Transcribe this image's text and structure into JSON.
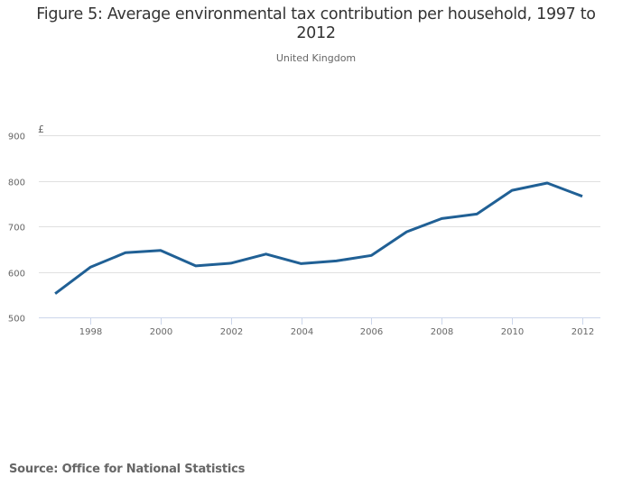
{
  "chart_data": {
    "type": "line",
    "title": "Figure 5: Average environmental tax contribution per household, 1997 to 2012",
    "subtitle": "United Kingdom",
    "xlabel": "",
    "ylabel": "£",
    "x": [
      1997,
      1998,
      1999,
      2000,
      2001,
      2002,
      2003,
      2004,
      2005,
      2006,
      2007,
      2008,
      2009,
      2010,
      2011,
      2012
    ],
    "series": [
      {
        "name": "Average environmental tax contribution per household",
        "color": "#206095",
        "values": [
          552,
          610,
          642,
          647,
          613,
          619,
          639,
          618,
          624,
          636,
          688,
          717,
          727,
          779,
          795,
          766
        ]
      }
    ],
    "xlim": [
      1996.0,
      2012.5
    ],
    "ylim": [
      500,
      900
    ],
    "yticks": [
      500,
      600,
      700,
      800,
      900
    ],
    "xticks": [
      1998,
      2000,
      2002,
      2004,
      2006,
      2008,
      2010,
      2012
    ],
    "grid": true,
    "legend": "none"
  },
  "source": "Source: Office for National Statistics",
  "colors": {
    "line": "#206095",
    "grid": "#e0e0e0",
    "axis": "#ccd6eb",
    "text": "#666666",
    "title": "#333333"
  }
}
